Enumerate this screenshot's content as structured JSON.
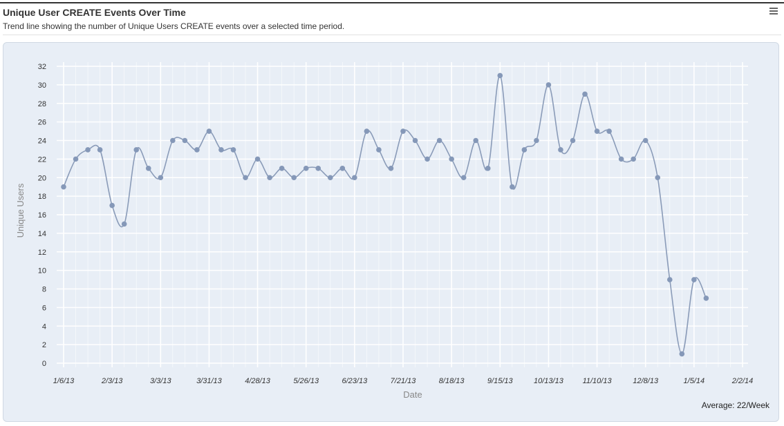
{
  "header": {
    "title": "Unique User CREATE Events Over Time",
    "subtitle": "Trend line showing the number of Unique Users CREATE events over a selected time period.",
    "menu_icon": "hamburger-menu-icon"
  },
  "footer": {
    "average": "Average: 22/Week"
  },
  "colors": {
    "line": "#8a9bb8",
    "point": "#8598b8",
    "panel_bg": "#e8eef6",
    "grid": "#ffffff"
  },
  "chart_data": {
    "type": "line",
    "xlabel": "Date",
    "ylabel": "Unique Users",
    "ylim": [
      0,
      32
    ],
    "yticks": [
      0,
      2,
      4,
      6,
      8,
      10,
      12,
      14,
      16,
      18,
      20,
      22,
      24,
      26,
      28,
      30,
      32
    ],
    "xlim": [
      "2013-01-06",
      "2014-02-02"
    ],
    "xtick_labels": [
      "1/6/13",
      "2/3/13",
      "3/3/13",
      "3/31/13",
      "4/28/13",
      "5/26/13",
      "6/23/13",
      "7/21/13",
      "8/18/13",
      "9/15/13",
      "10/13/13",
      "11/10/13",
      "12/8/13",
      "1/5/14",
      "2/2/14"
    ],
    "grid": true,
    "x": [
      "2013-01-06",
      "2013-01-13",
      "2013-01-20",
      "2013-01-27",
      "2013-02-03",
      "2013-02-10",
      "2013-02-17",
      "2013-02-24",
      "2013-03-03",
      "2013-03-10",
      "2013-03-17",
      "2013-03-24",
      "2013-03-31",
      "2013-04-07",
      "2013-04-14",
      "2013-04-21",
      "2013-04-28",
      "2013-05-05",
      "2013-05-12",
      "2013-05-19",
      "2013-05-26",
      "2013-06-02",
      "2013-06-09",
      "2013-06-16",
      "2013-06-23",
      "2013-06-30",
      "2013-07-07",
      "2013-07-14",
      "2013-07-21",
      "2013-07-28",
      "2013-08-04",
      "2013-08-11",
      "2013-08-18",
      "2013-08-25",
      "2013-09-01",
      "2013-09-08",
      "2013-09-15",
      "2013-09-22",
      "2013-09-29",
      "2013-10-06",
      "2013-10-13",
      "2013-10-20",
      "2013-10-27",
      "2013-11-03",
      "2013-11-10",
      "2013-11-17",
      "2013-11-24",
      "2013-12-01",
      "2013-12-08",
      "2013-12-15",
      "2013-12-22",
      "2013-12-29",
      "2014-01-05",
      "2014-01-12"
    ],
    "values": [
      19,
      22,
      23,
      23,
      17,
      15,
      23,
      21,
      20,
      24,
      24,
      23,
      25,
      23,
      23,
      20,
      22,
      20,
      21,
      20,
      21,
      21,
      20,
      21,
      20,
      25,
      23,
      21,
      25,
      24,
      22,
      24,
      22,
      20,
      24,
      21,
      31,
      19,
      23,
      24,
      30,
      23,
      24,
      29,
      25,
      25,
      22,
      22,
      24,
      20,
      9,
      1,
      9,
      7
    ]
  }
}
